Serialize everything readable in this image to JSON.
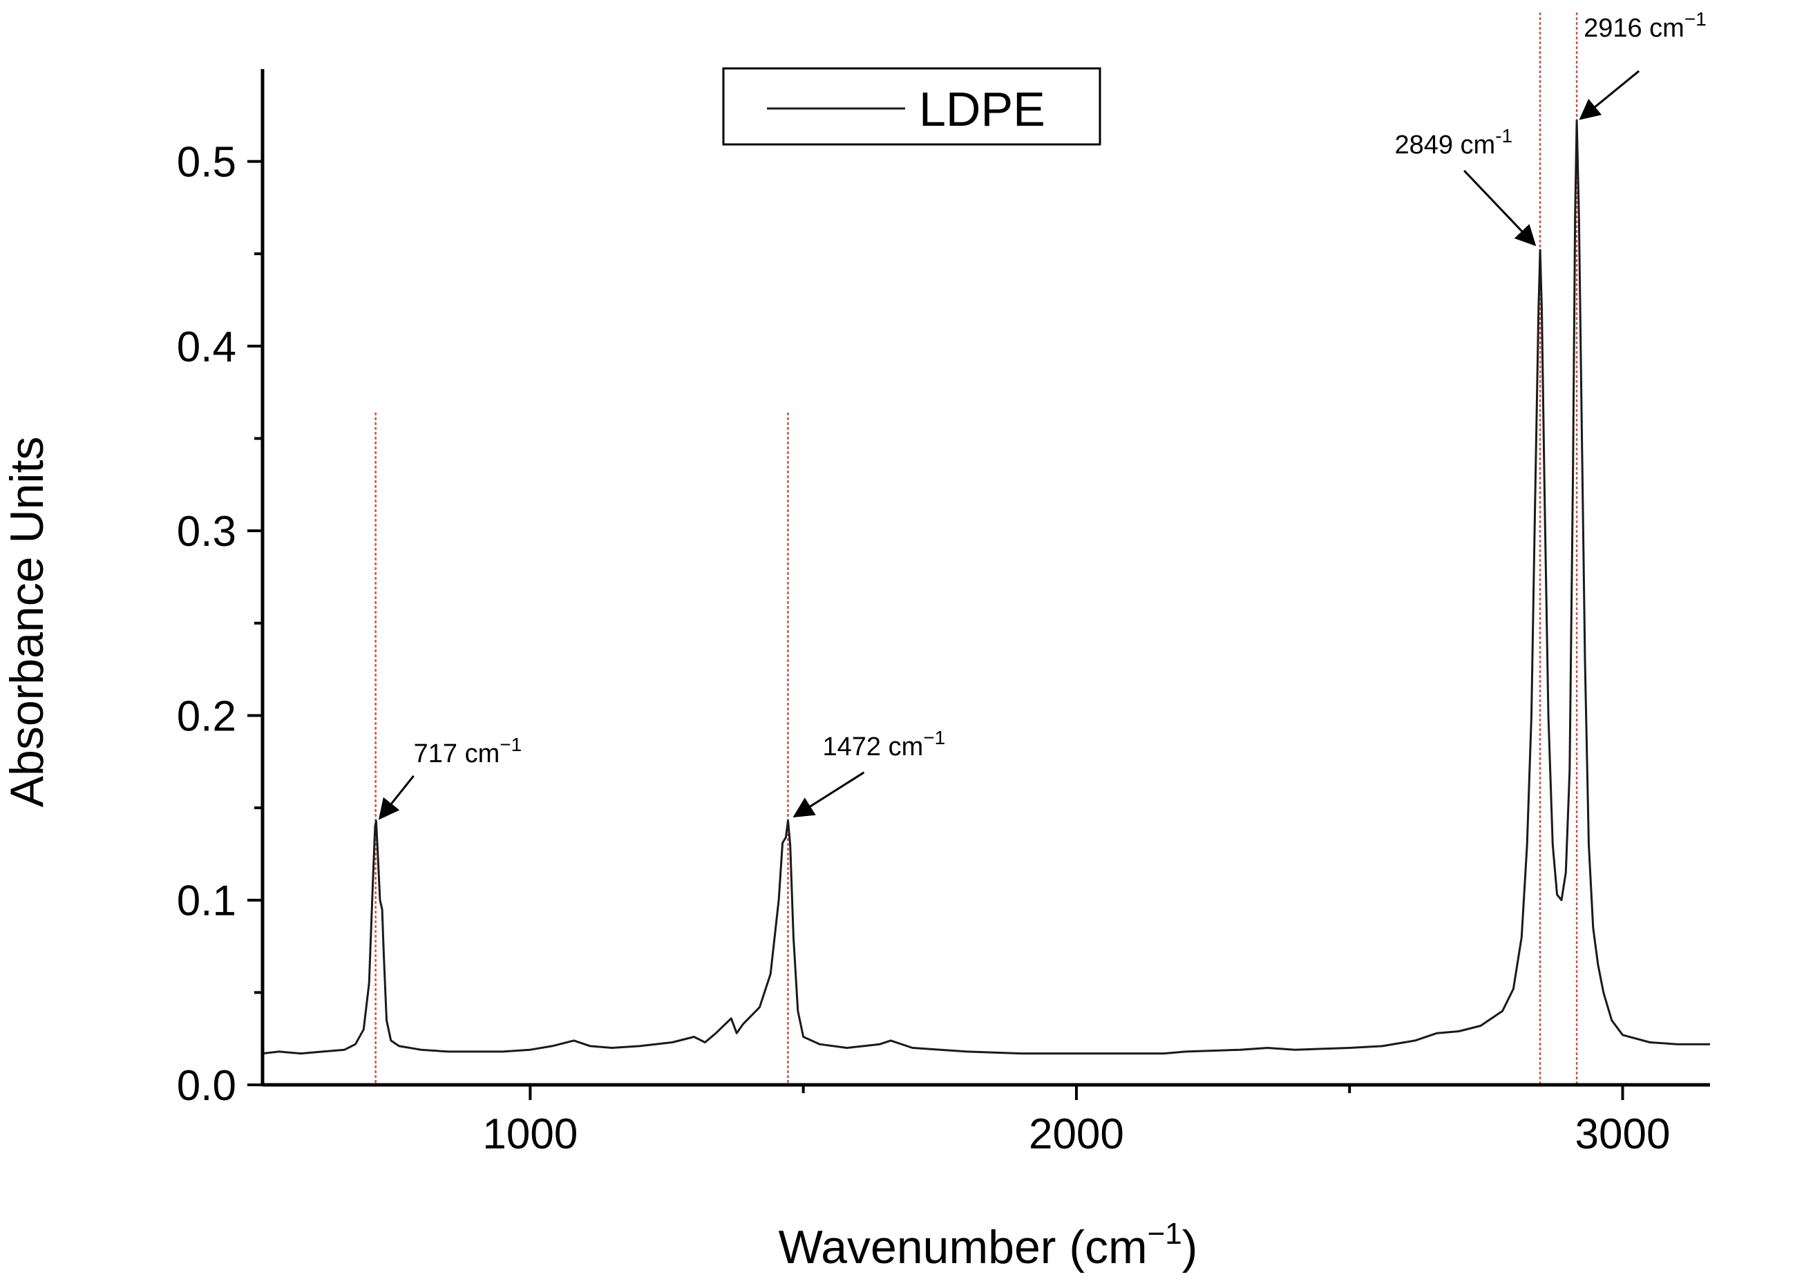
{
  "chart_data": {
    "type": "line",
    "title": "",
    "xlabel": "Wavenumber (cm",
    "xlabel_sup": "−1",
    "xlabel_close": ")",
    "ylabel": "Absorbance Units",
    "xlim": [
      510,
      3160
    ],
    "ylim": [
      0,
      0.55
    ],
    "x_ticks": [
      1000,
      2000,
      3000
    ],
    "x_tick_labels": [
      "1000",
      "2000",
      "3000"
    ],
    "x_minor_ticks": [
      500,
      1500,
      2500
    ],
    "y_ticks": [
      0.0,
      0.1,
      0.2,
      0.3,
      0.4,
      0.5
    ],
    "y_tick_labels": [
      "0.0",
      "0.1",
      "0.2",
      "0.3",
      "0.4",
      "0.5"
    ],
    "y_minor_ticks": [
      0.05,
      0.15,
      0.25,
      0.35,
      0.45
    ],
    "legend": {
      "position": "top-center",
      "entries": [
        "LDPE"
      ]
    },
    "series": [
      {
        "name": "LDPE",
        "color": "#1a1a1a",
        "points": [
          [
            510,
            0.017
          ],
          [
            540,
            0.018
          ],
          [
            580,
            0.017
          ],
          [
            620,
            0.018
          ],
          [
            660,
            0.019
          ],
          [
            680,
            0.022
          ],
          [
            695,
            0.03
          ],
          [
            705,
            0.055
          ],
          [
            712,
            0.11
          ],
          [
            716,
            0.14
          ],
          [
            718,
            0.143
          ],
          [
            721,
            0.125
          ],
          [
            725,
            0.1
          ],
          [
            729,
            0.095
          ],
          [
            732,
            0.07
          ],
          [
            737,
            0.035
          ],
          [
            745,
            0.024
          ],
          [
            760,
            0.021
          ],
          [
            800,
            0.019
          ],
          [
            850,
            0.018
          ],
          [
            900,
            0.018
          ],
          [
            950,
            0.018
          ],
          [
            1000,
            0.019
          ],
          [
            1040,
            0.021
          ],
          [
            1080,
            0.024
          ],
          [
            1110,
            0.021
          ],
          [
            1150,
            0.02
          ],
          [
            1200,
            0.021
          ],
          [
            1260,
            0.023
          ],
          [
            1300,
            0.026
          ],
          [
            1320,
            0.023
          ],
          [
            1340,
            0.028
          ],
          [
            1368,
            0.036
          ],
          [
            1378,
            0.028
          ],
          [
            1390,
            0.033
          ],
          [
            1420,
            0.042
          ],
          [
            1440,
            0.06
          ],
          [
            1455,
            0.1
          ],
          [
            1462,
            0.131
          ],
          [
            1468,
            0.134
          ],
          [
            1472,
            0.143
          ],
          [
            1476,
            0.13
          ],
          [
            1482,
            0.08
          ],
          [
            1490,
            0.04
          ],
          [
            1500,
            0.026
          ],
          [
            1530,
            0.022
          ],
          [
            1580,
            0.02
          ],
          [
            1640,
            0.022
          ],
          [
            1660,
            0.024
          ],
          [
            1700,
            0.02
          ],
          [
            1800,
            0.018
          ],
          [
            1900,
            0.017
          ],
          [
            2000,
            0.017
          ],
          [
            2100,
            0.017
          ],
          [
            2160,
            0.017
          ],
          [
            2200,
            0.018
          ],
          [
            2300,
            0.019
          ],
          [
            2350,
            0.02
          ],
          [
            2400,
            0.019
          ],
          [
            2500,
            0.02
          ],
          [
            2560,
            0.021
          ],
          [
            2620,
            0.024
          ],
          [
            2660,
            0.028
          ],
          [
            2700,
            0.029
          ],
          [
            2740,
            0.032
          ],
          [
            2780,
            0.04
          ],
          [
            2800,
            0.052
          ],
          [
            2815,
            0.08
          ],
          [
            2825,
            0.13
          ],
          [
            2833,
            0.2
          ],
          [
            2840,
            0.32
          ],
          [
            2846,
            0.42
          ],
          [
            2849,
            0.452
          ],
          [
            2852,
            0.42
          ],
          [
            2857,
            0.32
          ],
          [
            2864,
            0.2
          ],
          [
            2872,
            0.13
          ],
          [
            2880,
            0.103
          ],
          [
            2888,
            0.1
          ],
          [
            2896,
            0.115
          ],
          [
            2903,
            0.17
          ],
          [
            2909,
            0.33
          ],
          [
            2913,
            0.47
          ],
          [
            2916,
            0.522
          ],
          [
            2920,
            0.47
          ],
          [
            2925,
            0.36
          ],
          [
            2931,
            0.23
          ],
          [
            2938,
            0.13
          ],
          [
            2946,
            0.085
          ],
          [
            2955,
            0.065
          ],
          [
            2965,
            0.05
          ],
          [
            2980,
            0.035
          ],
          [
            3000,
            0.027
          ],
          [
            3050,
            0.023
          ],
          [
            3100,
            0.022
          ],
          [
            3160,
            0.022
          ]
        ]
      }
    ],
    "reference_lines": [
      717,
      1472,
      2849,
      2916
    ],
    "annotations": [
      {
        "x": 717,
        "y": 0.143,
        "text": "717 cm",
        "sup": "−1"
      },
      {
        "x": 1472,
        "y": 0.143,
        "text": "1472 cm",
        "sup": "−1"
      },
      {
        "x": 2849,
        "y": 0.452,
        "text": "2849 cm",
        "sup": "-1"
      },
      {
        "x": 2916,
        "y": 0.522,
        "text": "2916 cm",
        "sup": "−1"
      }
    ]
  }
}
